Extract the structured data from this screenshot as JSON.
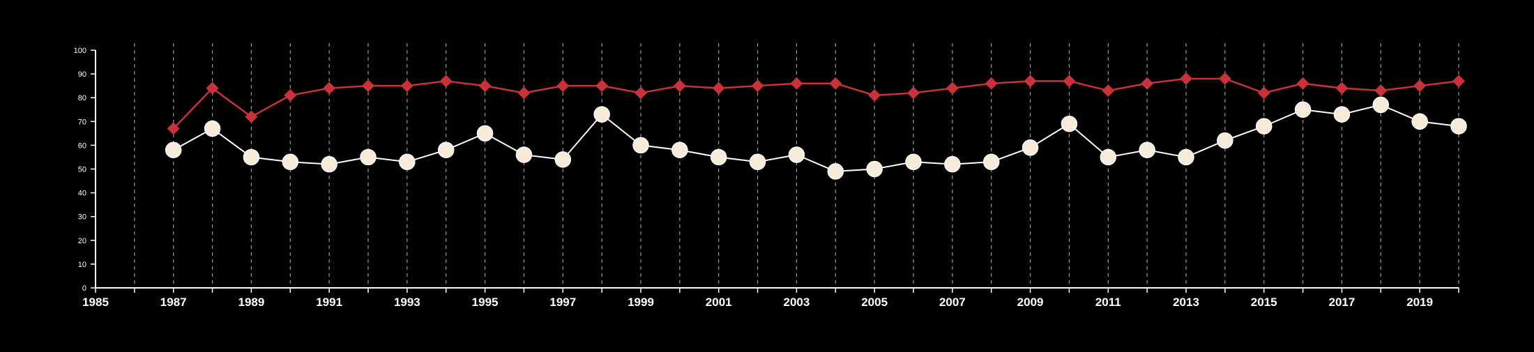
{
  "chart_data": {
    "type": "line",
    "title": "",
    "xlabel": "",
    "ylabel": "",
    "xlim": [
      1985,
      2020
    ],
    "ylim": [
      0,
      100
    ],
    "x_ticks": [
      1985,
      1986,
      1987,
      1988,
      1989,
      1990,
      1991,
      1992,
      1993,
      1994,
      1995,
      1996,
      1997,
      1998,
      1999,
      2000,
      2001,
      2002,
      2003,
      2004,
      2005,
      2006,
      2007,
      2008,
      2009,
      2010,
      2011,
      2012,
      2013,
      2014,
      2015,
      2016,
      2017,
      2018,
      2019,
      2020
    ],
    "x_tick_labels": [
      "1985",
      "",
      "1987",
      "",
      "1989",
      "",
      "1991",
      "",
      "1993",
      "",
      "1995",
      "",
      "1997",
      "",
      "1999",
      "",
      "2001",
      "",
      "2003",
      "",
      "2005",
      "",
      "2007",
      "",
      "2009",
      "",
      "2011",
      "",
      "2013",
      "",
      "2015",
      "",
      "2017",
      "",
      "2019",
      ""
    ],
    "y_ticks": [
      0,
      10,
      20,
      30,
      40,
      50,
      60,
      70,
      80,
      90,
      100
    ],
    "y_tick_labels": [
      "0",
      "10",
      "20",
      "30",
      "40",
      "50",
      "60",
      "70",
      "80",
      "90",
      "100"
    ],
    "grid": "vertical dashed",
    "x": [
      1987,
      1988,
      1989,
      1990,
      1991,
      1992,
      1993,
      1994,
      1995,
      1996,
      1997,
      1998,
      1999,
      2000,
      2001,
      2002,
      2003,
      2004,
      2005,
      2006,
      2007,
      2008,
      2009,
      2010,
      2011,
      2012,
      2013,
      2014,
      2015,
      2016,
      2017,
      2018,
      2019,
      2020
    ],
    "series": [
      {
        "marker": "diamond",
        "color": "#c8323a",
        "values": [
          67,
          84,
          72,
          81,
          84,
          85,
          85,
          87,
          85,
          82,
          85,
          85,
          82,
          85,
          84,
          85,
          86,
          86,
          81,
          82,
          84,
          86,
          87,
          87,
          83,
          86,
          88,
          88,
          82,
          86,
          84,
          83,
          85,
          87
        ]
      },
      {
        "marker": "circle",
        "color": "#f7ead8",
        "values": [
          58,
          67,
          55,
          53,
          52,
          55,
          53,
          58,
          65,
          56,
          54,
          73,
          60,
          58,
          55,
          53,
          56,
          49,
          50,
          53,
          52,
          53,
          59,
          69,
          55,
          58,
          55,
          62,
          68,
          75,
          73,
          77,
          70,
          68
        ]
      }
    ]
  }
}
